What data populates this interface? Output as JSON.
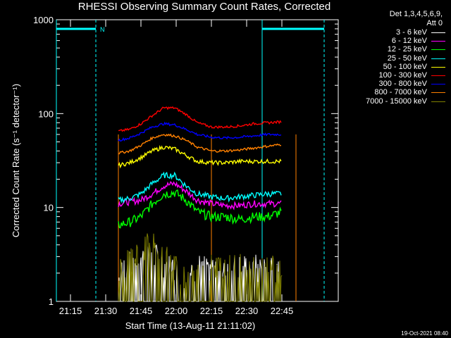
{
  "chart_data": {
    "type": "line",
    "title": "RHESSI Observing Summary Count Rates, Corrected",
    "xlabel": "Start Time (13-Aug-11 21:11:02)",
    "ylabel": "Corrected Count Rate (s⁻¹ detector⁻¹)",
    "yscale": "log",
    "ylim": [
      1,
      1000
    ],
    "y_ticks": [
      "1",
      "10",
      "100",
      "1000"
    ],
    "x_ticks": [
      "21:15",
      "21:30",
      "21:45",
      "22:00",
      "22:15",
      "22:30",
      "22:45"
    ],
    "xlim": [
      0,
      100
    ],
    "legend_header": [
      "Det 1,3,4,5,6,9,",
      "Att 0"
    ],
    "series": [
      {
        "name": "3 - 6 keV",
        "color": "#ffffff",
        "points": [
          [
            22,
            2.0
          ],
          [
            28,
            2.2
          ],
          [
            33,
            3.0
          ],
          [
            36,
            2.5
          ],
          [
            40,
            2.0
          ],
          [
            45,
            1.5
          ],
          [
            50,
            2.0
          ],
          [
            55,
            2.0
          ],
          [
            60,
            2.0
          ],
          [
            65,
            2.0
          ],
          [
            70,
            2.0
          ],
          [
            75,
            2.0
          ],
          [
            80,
            2.0
          ]
        ]
      },
      {
        "name": "6 - 12 keV",
        "color": "#ff00ff",
        "points": [
          [
            22,
            11
          ],
          [
            26,
            11.5
          ],
          [
            30,
            12
          ],
          [
            34,
            14
          ],
          [
            38,
            17
          ],
          [
            42,
            18
          ],
          [
            46,
            15
          ],
          [
            50,
            12
          ],
          [
            55,
            11
          ],
          [
            60,
            10.5
          ],
          [
            65,
            10.5
          ],
          [
            70,
            11
          ],
          [
            75,
            11
          ],
          [
            80,
            11
          ]
        ]
      },
      {
        "name": "12 - 25 keV",
        "color": "#00ff00",
        "points": [
          [
            22,
            6.5
          ],
          [
            26,
            7
          ],
          [
            30,
            8
          ],
          [
            34,
            11
          ],
          [
            38,
            14
          ],
          [
            42,
            14.5
          ],
          [
            46,
            12
          ],
          [
            50,
            9
          ],
          [
            55,
            8
          ],
          [
            60,
            8
          ],
          [
            65,
            7.5
          ],
          [
            70,
            8
          ],
          [
            75,
            8
          ],
          [
            80,
            9
          ]
        ]
      },
      {
        "name": "25 - 50 keV",
        "color": "#00ffff",
        "points": [
          [
            22,
            12
          ],
          [
            26,
            12.5
          ],
          [
            30,
            14
          ],
          [
            34,
            18
          ],
          [
            38,
            22
          ],
          [
            42,
            22
          ],
          [
            46,
            17
          ],
          [
            50,
            14
          ],
          [
            55,
            13
          ],
          [
            60,
            12.5
          ],
          [
            65,
            13
          ],
          [
            70,
            13.5
          ],
          [
            75,
            14
          ],
          [
            80,
            14
          ]
        ]
      },
      {
        "name": "50 - 100 keV",
        "color": "#ffff00",
        "points": [
          [
            22,
            28
          ],
          [
            26,
            30
          ],
          [
            30,
            34
          ],
          [
            34,
            40
          ],
          [
            38,
            44
          ],
          [
            42,
            42
          ],
          [
            46,
            36
          ],
          [
            50,
            31
          ],
          [
            55,
            30
          ],
          [
            60,
            30
          ],
          [
            65,
            31
          ],
          [
            70,
            31
          ],
          [
            75,
            31
          ],
          [
            80,
            31
          ]
        ]
      },
      {
        "name": "100 - 300 keV",
        "color": "#ff0000",
        "points": [
          [
            22,
            65
          ],
          [
            26,
            68
          ],
          [
            30,
            78
          ],
          [
            34,
            95
          ],
          [
            38,
            115
          ],
          [
            42,
            115
          ],
          [
            46,
            98
          ],
          [
            50,
            80
          ],
          [
            55,
            72
          ],
          [
            60,
            72
          ],
          [
            65,
            74
          ],
          [
            70,
            78
          ],
          [
            75,
            80
          ],
          [
            80,
            82
          ]
        ]
      },
      {
        "name": "300 - 800 keV",
        "color": "#0000ff",
        "points": [
          [
            22,
            52
          ],
          [
            26,
            55
          ],
          [
            30,
            62
          ],
          [
            34,
            72
          ],
          [
            38,
            78
          ],
          [
            42,
            76
          ],
          [
            46,
            68
          ],
          [
            50,
            60
          ],
          [
            55,
            56
          ],
          [
            60,
            55
          ],
          [
            65,
            56
          ],
          [
            70,
            58
          ],
          [
            75,
            60
          ],
          [
            80,
            60
          ]
        ]
      },
      {
        "name": "800 - 7000 keV",
        "color": "#ff8000",
        "points": [
          [
            22,
            38
          ],
          [
            26,
            40
          ],
          [
            30,
            46
          ],
          [
            34,
            55
          ],
          [
            38,
            60
          ],
          [
            42,
            58
          ],
          [
            46,
            52
          ],
          [
            50,
            44
          ],
          [
            55,
            40
          ],
          [
            60,
            40
          ],
          [
            65,
            41
          ],
          [
            70,
            43
          ],
          [
            75,
            45
          ],
          [
            80,
            47
          ]
        ]
      },
      {
        "name": "7000 - 15000 keV",
        "color": "#808000",
        "points": [
          [
            22,
            2.0
          ],
          [
            28,
            2.5
          ],
          [
            33,
            3.5
          ],
          [
            37,
            3.0
          ],
          [
            42,
            2.0
          ],
          [
            48,
            1.5
          ],
          [
            55,
            2.0
          ],
          [
            62,
            2.0
          ],
          [
            70,
            2.0
          ],
          [
            75,
            2.0
          ],
          [
            80,
            2.0
          ]
        ]
      }
    ]
  },
  "footer_stamp": "19-Oct-2021 08:40",
  "flag_marker": "N"
}
